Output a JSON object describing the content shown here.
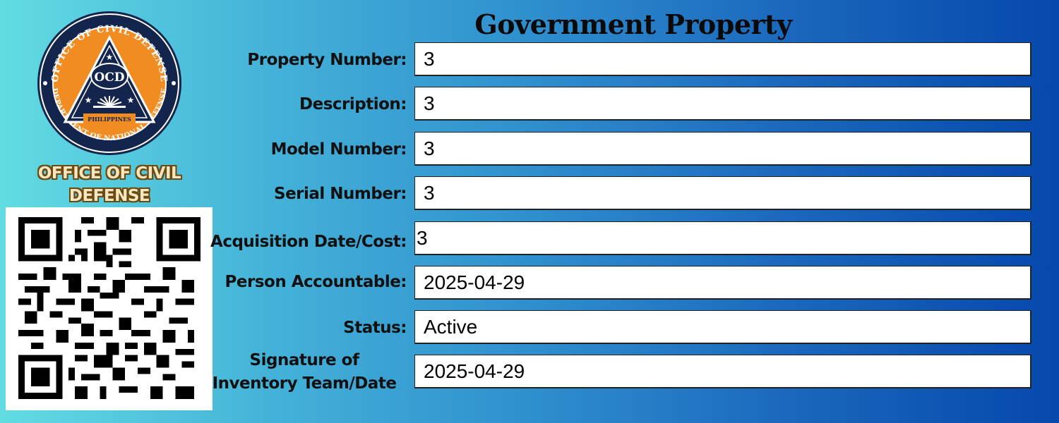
{
  "header": {
    "title": "Government Property"
  },
  "organization": {
    "name": "OFFICE OF CIVIL DEFENSE",
    "logo_text": {
      "top_arc": "OFFICE OF CIVIL DEFENSE",
      "bottom_arc": "DEPARTMENT OF NATIONAL DEFENSE",
      "center": "OCD",
      "country": "PHILIPPINES"
    },
    "colors": {
      "seal_navy": "#14254d",
      "seal_orange": "#f08c22"
    }
  },
  "form": {
    "fields": [
      {
        "label": "Property Number:",
        "value": "3"
      },
      {
        "label": "Description:",
        "value": "3"
      },
      {
        "label": "Model Number:",
        "value": "3"
      },
      {
        "label": "Serial Number:",
        "value": "3"
      },
      {
        "label": "Acquisition Date/Cost:",
        "value": "3"
      },
      {
        "label": "Person Accountable:",
        "value": "2025-04-29"
      },
      {
        "label": "Status:",
        "value": "Active"
      },
      {
        "label_line1": "Signature of",
        "label_line2": "Inventory Team/Date",
        "value": "2025-04-29"
      }
    ]
  },
  "qr": {
    "icon": "qr-code-icon"
  }
}
